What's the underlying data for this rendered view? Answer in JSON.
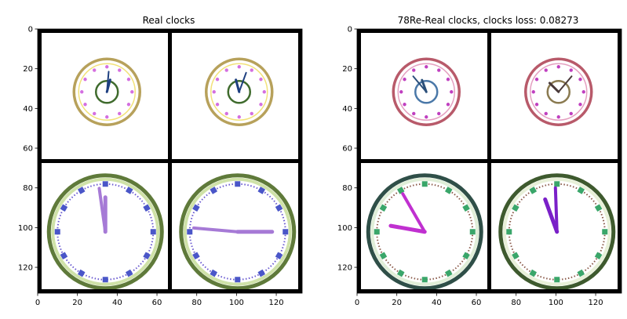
{
  "panels": [
    {
      "title": "Real clocks",
      "xticks": [
        0,
        20,
        40,
        60,
        80,
        100,
        120
      ],
      "yticks": [
        0,
        20,
        40,
        60,
        80,
        100,
        120
      ],
      "extent": [
        0,
        133
      ],
      "clocks": [
        {
          "name": "clock-real-1",
          "cell": [
            0,
            0
          ],
          "style": "small",
          "rim": "#b7a15b",
          "inner_rim": "#f2e27a",
          "markers": "#d46fe0",
          "hub": "#3f6b2d",
          "hands": "#1e3f80",
          "hour_angle": 15,
          "minute_angle": 5
        },
        {
          "name": "clock-real-2",
          "cell": [
            1,
            0
          ],
          "style": "small",
          "rim": "#b7a15b",
          "inner_rim": "#f2e27a",
          "markers": "#d46fe0",
          "hub": "#3f6b2d",
          "hands": "#1e3f80",
          "hour_angle": -15,
          "minute_angle": 20
        },
        {
          "name": "clock-real-3",
          "cell": [
            0,
            1
          ],
          "style": "big",
          "rim": "#5f7a3a",
          "inner_rim": "#cfe2a8",
          "markers": "#4a56c8",
          "dots": "#6a5ad0",
          "hands": "#a67ad6",
          "hour_angle": 0,
          "minute_angle": -8
        },
        {
          "name": "clock-real-4",
          "cell": [
            1,
            1
          ],
          "style": "big",
          "rim": "#5f7a3a",
          "inner_rim": "#cfe2a8",
          "markers": "#4a56c8",
          "dots": "#6a5ad0",
          "hands": "#a67ad6",
          "hour_angle": 90,
          "minute_angle": -85
        }
      ]
    },
    {
      "title": "78Re-Real clocks, clocks loss: 0.08273",
      "xticks": [
        0,
        20,
        40,
        60,
        80,
        100,
        120
      ],
      "yticks": [
        0,
        20,
        40,
        60,
        80,
        100,
        120
      ],
      "extent": [
        0,
        133
      ],
      "clocks": [
        {
          "name": "clock-rereal-1",
          "cell": [
            0,
            0
          ],
          "style": "small",
          "rim": "#b85a6a",
          "inner_rim": "#e4a0c0",
          "markers": "#c040c0",
          "hub": "#4a78a8",
          "hands": "#2a4f7a",
          "hour_angle": -20,
          "minute_angle": -40
        },
        {
          "name": "clock-rereal-2",
          "cell": [
            1,
            0
          ],
          "style": "small",
          "rim": "#b85a6a",
          "inner_rim": "#e4a0c0",
          "markers": "#c040c0",
          "hub": "#8a7a50",
          "hands": "#4a3a3a",
          "hour_angle": -45,
          "minute_angle": 40
        },
        {
          "name": "clock-rereal-3",
          "cell": [
            0,
            1
          ],
          "style": "big",
          "rim": "#2f4f48",
          "inner_rim": "#e0eed8",
          "markers": "#3aa66a",
          "dots": "#8a5a4a",
          "hands": "#c030d0",
          "hour_angle": -80,
          "minute_angle": -30
        },
        {
          "name": "clock-rereal-4",
          "cell": [
            1,
            1
          ],
          "style": "big",
          "rim": "#3e5a2e",
          "inner_rim": "#e8f0d8",
          "markers": "#3aa66a",
          "dots": "#8a5a4a",
          "hands": "#7a20c8",
          "hour_angle": -20,
          "minute_angle": -2
        }
      ]
    }
  ]
}
